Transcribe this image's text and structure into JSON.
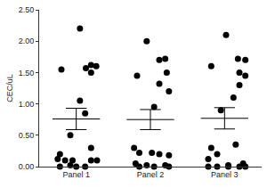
{
  "chart_data": {
    "type": "scatter",
    "y_label": "CEC/uL",
    "color": "#000000",
    "marker": "circle",
    "xlim": [
      0.5,
      3.5
    ],
    "xticks": [
      {
        "value": 1,
        "label": "Panel 1"
      },
      {
        "value": 2,
        "label": "Panel 2"
      },
      {
        "value": 3,
        "label": "Panel 3"
      }
    ],
    "ylim": [
      0,
      2.5
    ],
    "yticks": [
      {
        "value": 0,
        "label": "0.00"
      },
      {
        "value": 0.5,
        "label": "0.50"
      },
      {
        "value": 1,
        "label": "1.00"
      },
      {
        "value": 1.5,
        "label": "1.50"
      },
      {
        "value": 2,
        "label": "2.00"
      },
      {
        "value": 2.5,
        "label": "2.50"
      }
    ],
    "series": [
      {
        "x": [
          1.05,
          1.2,
          1.27,
          1.13,
          0.8,
          1.2,
          1.05,
          1.12,
          0.92,
          1.2,
          0.78,
          0.75,
          0.85,
          0.95,
          1.2,
          1.28,
          0.92,
          0.78,
          1.0,
          1.12
        ],
        "values": [
          2.2,
          1.62,
          1.6,
          1.57,
          1.55,
          1.5,
          1.05,
          0.85,
          0.5,
          0.3,
          0.2,
          0.12,
          0.1,
          0.1,
          0.1,
          0.1,
          0.02,
          0.0,
          0.0,
          0.0
        ],
        "mean": 0.76,
        "error": 0.17
      },
      {
        "x": [
          1.95,
          2.2,
          2.12,
          2.22,
          1.82,
          2.12,
          2.25,
          2.05,
          1.78,
          1.85,
          2.02,
          2.12,
          2.25,
          1.8,
          1.95,
          2.2,
          1.85,
          2.05,
          2.25
        ],
        "values": [
          2.0,
          1.72,
          1.7,
          1.5,
          1.45,
          1.32,
          1.2,
          0.95,
          0.3,
          0.22,
          0.22,
          0.2,
          0.18,
          0.05,
          0.02,
          0.02,
          0.0,
          0.0,
          0.0
        ],
        "mean": 0.75,
        "error": 0.16
      },
      {
        "x": [
          3.02,
          3.18,
          3.28,
          2.82,
          3.2,
          3.28,
          3.2,
          3.12,
          2.95,
          3.15,
          2.82,
          2.9,
          2.78,
          3.25,
          3.05,
          2.78,
          2.9,
          3.05,
          3.2,
          3.28
        ],
        "values": [
          2.1,
          1.72,
          1.7,
          1.6,
          1.5,
          1.45,
          1.3,
          1.1,
          0.9,
          0.35,
          0.3,
          0.2,
          0.12,
          0.05,
          0.02,
          0.0,
          0.0,
          0.0,
          0.0,
          0.0
        ],
        "mean": 0.77,
        "error": 0.17
      }
    ]
  }
}
